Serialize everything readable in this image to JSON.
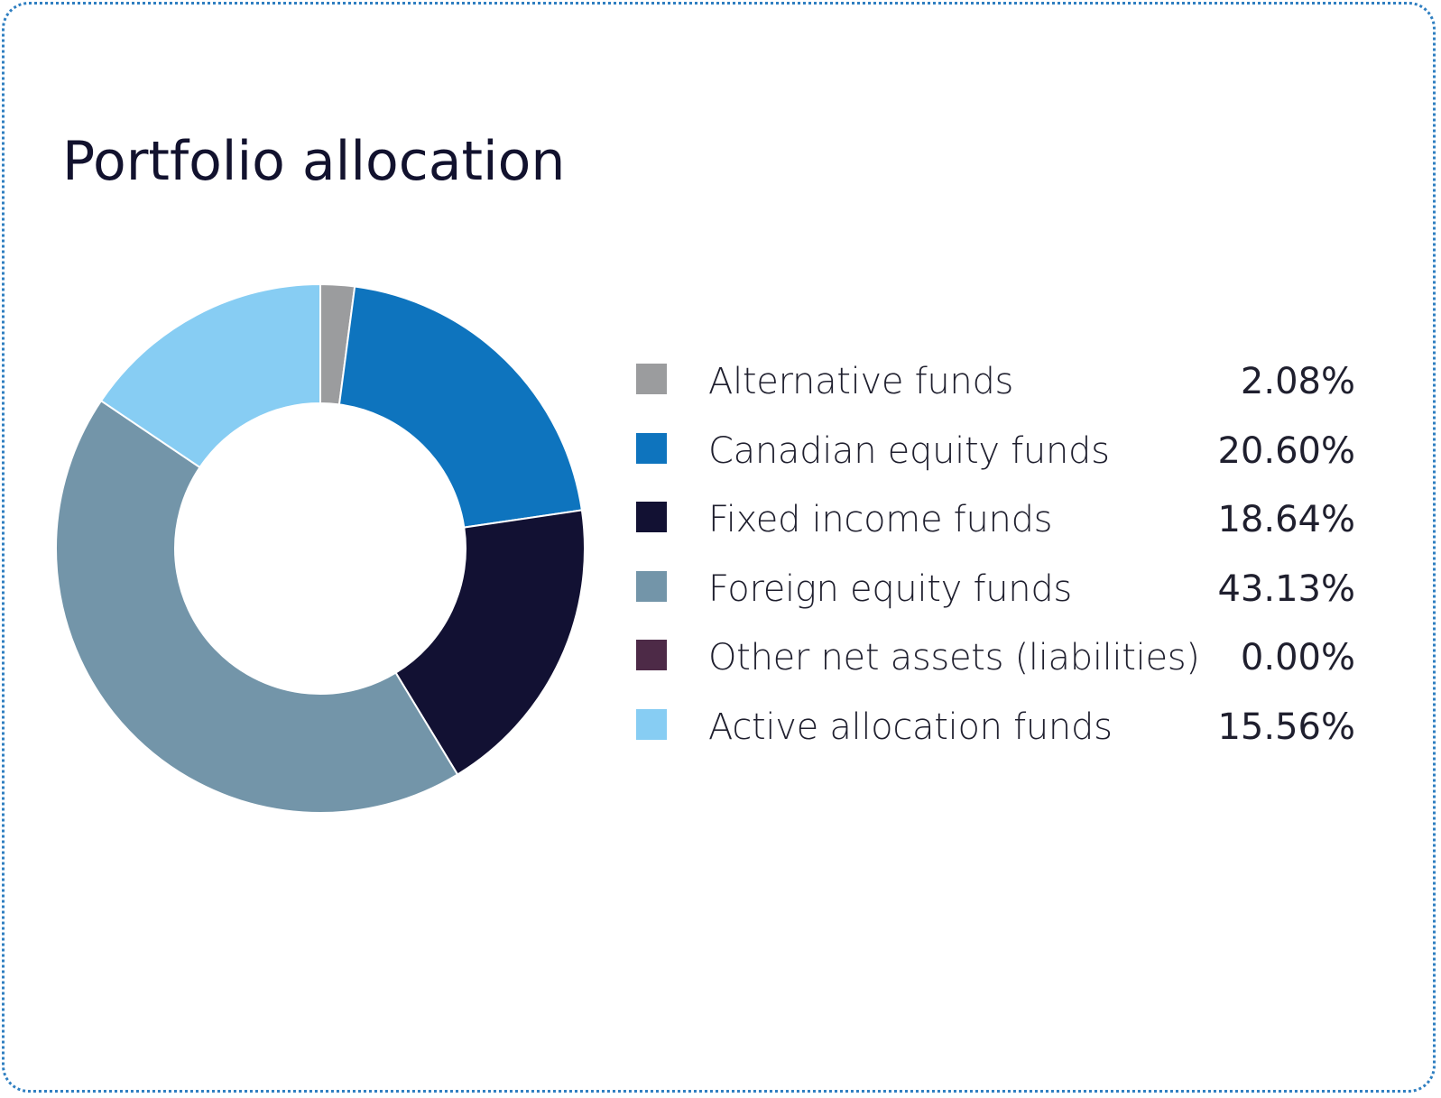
{
  "chart_data": {
    "type": "pie",
    "title": "Portfolio allocation",
    "donut": true,
    "legend_position": "right",
    "slices": [
      {
        "label": "Alternative funds",
        "value": 2.08,
        "value_label": "2.08%",
        "color": "#9b9c9e"
      },
      {
        "label": "Canadian equity funds",
        "value": 20.6,
        "value_label": "20.60%",
        "color": "#0e74be"
      },
      {
        "label": "Fixed income funds",
        "value": 18.64,
        "value_label": "18.64%",
        "color": "#121133"
      },
      {
        "label": "Foreign equity funds",
        "value": 43.13,
        "value_label": "43.13%",
        "color": "#7395a9"
      },
      {
        "label": "Other net assets (liabilities)",
        "value": 0.0,
        "value_label": "0.00%",
        "color": "#4d2a47"
      },
      {
        "label": "Active allocation funds",
        "value": 15.56,
        "value_label": "15.56%",
        "color": "#87cdf3"
      }
    ]
  }
}
